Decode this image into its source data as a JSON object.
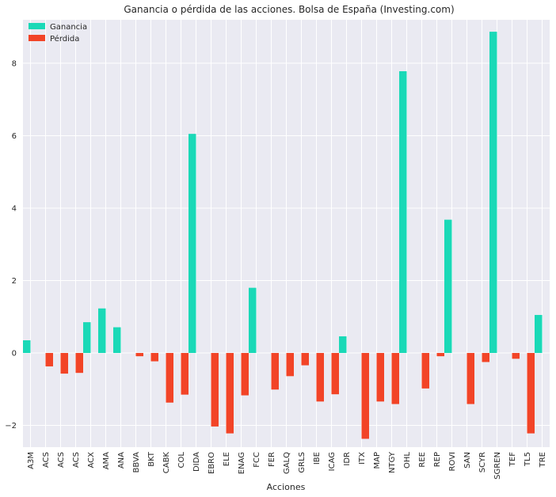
{
  "chart_data": {
    "type": "bar",
    "title": "Ganancia o pérdida de las acciones. Bolsa de España (Investing.com)",
    "xlabel": "Acciones",
    "ylabel": "",
    "ylim": [
      -2.6,
      9.2
    ],
    "yticks": [
      -2,
      0,
      2,
      4,
      6,
      8
    ],
    "ytick_labels": [
      "−2",
      "0",
      "2",
      "4",
      "6",
      "8"
    ],
    "grid": true,
    "legend_position": "top-left",
    "categories": [
      "A3M",
      "ACS",
      "ACS",
      "ACS",
      "ACX",
      "AMA",
      "ANA",
      "BBVA",
      "BKT",
      "CABK",
      "COL",
      "DIDA",
      "EBRO",
      "ELE",
      "ENAG",
      "FCC",
      "FER",
      "GALQ",
      "GRLS",
      "IBE",
      "ICAG",
      "IDR",
      "ITX",
      "MAP",
      "NTGY",
      "OHL",
      "REE",
      "REP",
      "ROVI",
      "SAN",
      "SCYR",
      "SGREN",
      "TEF",
      "TL5",
      "TRE"
    ],
    "series": [
      {
        "name": "Ganancia",
        "color": "#1ad9b7",
        "values": [
          0.35,
          0,
          0,
          0,
          0.85,
          1.23,
          0.71,
          0,
          0,
          0,
          0,
          6.05,
          0,
          0,
          0,
          1.8,
          0,
          0,
          0,
          0,
          0,
          0.46,
          0,
          0,
          0,
          7.78,
          0,
          0,
          3.68,
          0,
          0,
          8.87,
          0,
          0,
          1.05
        ]
      },
      {
        "name": "Pérdida",
        "color": "#f24427",
        "values": [
          0,
          -0.37,
          -0.57,
          -0.55,
          0,
          0,
          0,
          -0.09,
          -0.23,
          -1.37,
          -1.15,
          0,
          -2.03,
          -2.22,
          -1.17,
          0,
          -1.01,
          -0.64,
          -0.34,
          -1.34,
          -1.14,
          0,
          -2.37,
          -1.34,
          -1.41,
          0,
          -0.98,
          -0.09,
          0,
          -1.41,
          -0.25,
          0,
          -0.16,
          -2.22,
          0
        ]
      }
    ],
    "background": "#eaeaf2",
    "grid_color": "#ffffff",
    "text_color": "#262626"
  }
}
